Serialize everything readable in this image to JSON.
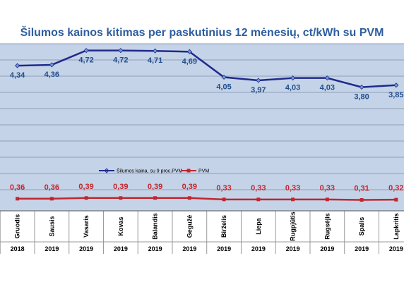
{
  "chart_data": {
    "type": "line",
    "title": "Šilumos kainos kitimas per paskutinius 12 mėnesių, ct/kWh su PVM",
    "categories": [
      "Gruodis",
      "Sausis",
      "Vasaris",
      "Kovas",
      "Balandis",
      "Gegužė",
      "Birželis",
      "Liepa",
      "Rugpjūtis",
      "Rugsėjis",
      "Spalis",
      "Lapkritis"
    ],
    "years": [
      "2018",
      "2019",
      "2019",
      "2019",
      "2019",
      "2019",
      "2019",
      "2019",
      "2019",
      "2019",
      "2019",
      "2019"
    ],
    "series": [
      {
        "name": "Šilumos kaina, su 9 proc.PVM",
        "values": [
          4.34,
          4.36,
          4.72,
          4.72,
          4.71,
          4.69,
          4.05,
          3.97,
          4.03,
          4.03,
          3.8,
          3.85
        ],
        "labels": [
          "4,34",
          "4,36",
          "4,72",
          "4,72",
          "4,71",
          "4,69",
          "4,05",
          "3,97",
          "4,03",
          "4,03",
          "3,80",
          "3,85"
        ],
        "color": "#1f2a8c"
      },
      {
        "name": "PVM",
        "values": [
          0.36,
          0.36,
          0.39,
          0.39,
          0.39,
          0.39,
          0.33,
          0.33,
          0.33,
          0.33,
          0.31,
          0.32
        ],
        "labels": [
          "0,36",
          "0,36",
          "0,39",
          "0,39",
          "0,39",
          "0,39",
          "0,33",
          "0,33",
          "0,33",
          "0,33",
          "0,31",
          "0,32"
        ],
        "color": "#c0272d"
      }
    ],
    "grid": true,
    "legend_position": "middle-center",
    "plot_background": "#c5d3e8"
  }
}
